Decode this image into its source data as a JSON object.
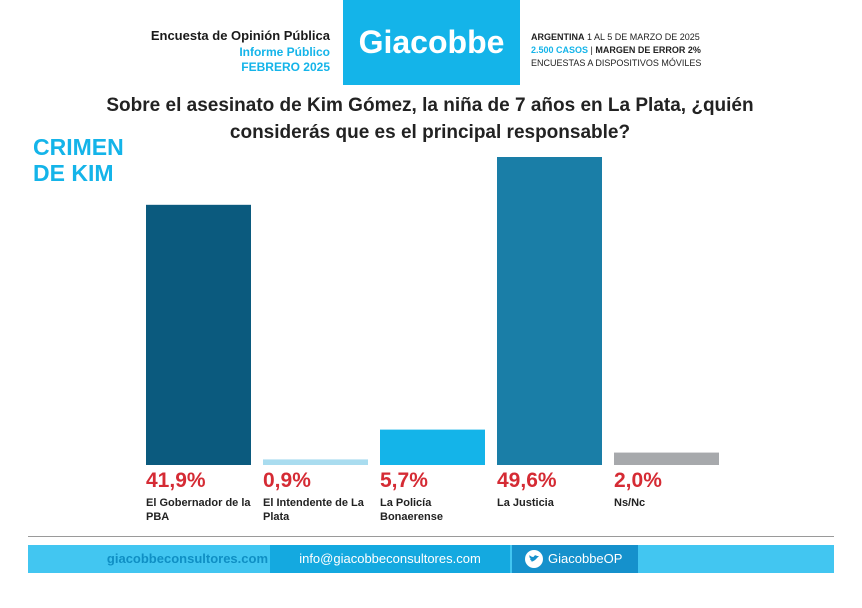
{
  "header": {
    "survey": "Encuesta de Opinión Pública",
    "report": "Informe Público",
    "date": "FEBRERO 2025",
    "brand": "Giacobbe",
    "country": "ARGENTINA",
    "period": "1 AL 5 DE MARZO DE 2025",
    "cases": "2.500 CASOS",
    "margin": "MARGEN DE ERROR 2%",
    "method": "ENCUESTAS A DISPOSITIVOS MÓVILES"
  },
  "chart_data": {
    "type": "bar",
    "title": "Sobre el asesinato de Kim Gómez, la niña de 7 años en La Plata, ¿quién considerás que es el principal responsable?",
    "subtitle": [
      "CRIMEN",
      "DE KIM"
    ],
    "categories": [
      "El Gobernador de la PBA",
      "El Intendente de La Plata",
      "La Policía Bonaerense",
      "La Justicia",
      "Ns/Nc"
    ],
    "values": [
      41.9,
      0.9,
      5.7,
      49.6,
      2.0
    ],
    "value_labels": [
      "41,9%",
      "0,9%",
      "5,7%",
      "49,6%",
      "2,0%"
    ],
    "colors": [
      "#0b5a7e",
      "#a9dcef",
      "#14b4e9",
      "#1a7ea7",
      "#a7a9ac"
    ]
  },
  "footer": {
    "web": "giacobbeconsultores.com",
    "email": "info@giacobbeconsultores.com",
    "twitter": "GiacobbeOP"
  }
}
